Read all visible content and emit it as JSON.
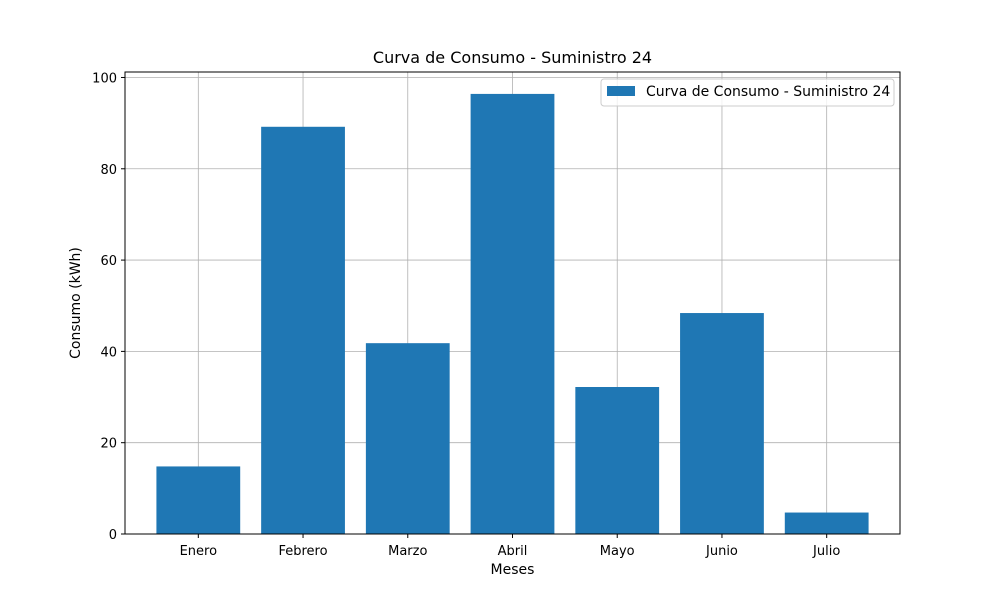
{
  "chart_data": {
    "type": "bar",
    "title": "Curva de Consumo - Suministro 24",
    "xlabel": "Meses",
    "ylabel": "Consumo (kWh)",
    "categories": [
      "Enero",
      "Febrero",
      "Marzo",
      "Abril",
      "Mayo",
      "Junio",
      "Julio"
    ],
    "series": [
      {
        "name": "Curva de Consumo - Suministro 24",
        "values": [
          14.8,
          89.2,
          41.8,
          96.4,
          32.2,
          48.4,
          4.7
        ],
        "color": "#1f77b4"
      }
    ],
    "ylim": [
      0,
      101.2
    ],
    "yticks": [
      0,
      20,
      40,
      60,
      80,
      100
    ],
    "grid": true,
    "legend_position": "top-right"
  }
}
